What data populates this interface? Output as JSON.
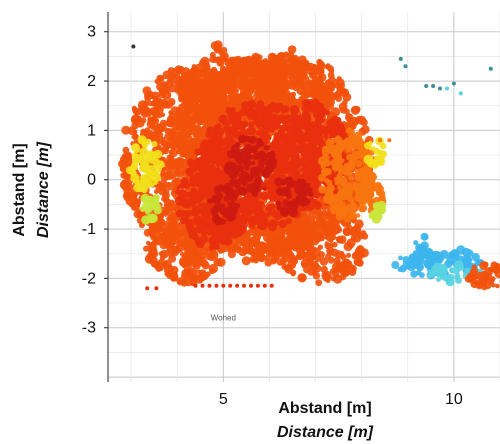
{
  "chart_data": {
    "type": "scatter",
    "title": "",
    "xlabel": "Abstand [m]",
    "xlabel_en": "Distance [m]",
    "ylabel": "Abstand [m]",
    "ylabel_en": "Distance [m]",
    "xlim": [
      2.5,
      11
    ],
    "ylim": [
      -4.1,
      3.4
    ],
    "x_ticks": [
      5,
      10
    ],
    "y_ticks": [
      3,
      2,
      1,
      0,
      -1,
      -2,
      -3
    ],
    "grid": true,
    "legend": "none",
    "annotation": {
      "text": "Wohed",
      "x": 5.0,
      "y": -2.85
    },
    "colors": {
      "dark_red": "#cc1a10",
      "red": "#e8300e",
      "orange_red": "#f2510c",
      "orange": "#f7740f",
      "yellow": "#f2e01a",
      "yellow_green": "#c9e63a",
      "light_blue": "#3db5ee",
      "cyan": "#59d2e2",
      "teal": "#3d8f96",
      "dark": "#333333",
      "grid": "#d4d4d4"
    },
    "series": [
      {
        "region": "canopy-outer",
        "color": "orange_red",
        "ellipses": [
          {
            "cx": 4.3,
            "cy": 0.4,
            "rx": 1.5,
            "ry": 1.9
          },
          {
            "cx": 6.0,
            "cy": 0.5,
            "rx": 2.2,
            "ry": 2.0
          },
          {
            "cx": 5.2,
            "cy": 1.8,
            "rx": 1.2,
            "ry": 0.7
          },
          {
            "cx": 6.5,
            "cy": 1.9,
            "rx": 1.1,
            "ry": 0.6
          },
          {
            "cx": 4.2,
            "cy": -1.2,
            "rx": 0.9,
            "ry": 0.9
          },
          {
            "cx": 7.1,
            "cy": -1.3,
            "rx": 1.0,
            "ry": 0.8
          },
          {
            "cx": 5.9,
            "cy": -1.1,
            "rx": 1.0,
            "ry": 0.6
          },
          {
            "cx": 4.9,
            "cy": 2.5,
            "rx": 0.2,
            "ry": 0.25
          },
          {
            "cx": 6.5,
            "cy": 2.4,
            "rx": 0.3,
            "ry": 0.25
          },
          {
            "cx": 5.6,
            "cy": 2.2,
            "rx": 0.5,
            "ry": 0.3
          }
        ]
      },
      {
        "region": "canopy-core",
        "color": "red",
        "ellipses": [
          {
            "cx": 5.8,
            "cy": 0.3,
            "rx": 1.3,
            "ry": 1.3
          },
          {
            "cx": 4.8,
            "cy": -0.3,
            "rx": 0.8,
            "ry": 1.1
          },
          {
            "cx": 6.9,
            "cy": 0.5,
            "rx": 0.8,
            "ry": 1.1
          }
        ]
      },
      {
        "region": "canopy-dark",
        "color": "dark_red",
        "ellipses": [
          {
            "cx": 5.6,
            "cy": 0.3,
            "rx": 0.5,
            "ry": 0.6
          },
          {
            "cx": 6.5,
            "cy": -0.3,
            "rx": 0.4,
            "ry": 0.4
          },
          {
            "cx": 5.0,
            "cy": -0.5,
            "rx": 0.3,
            "ry": 0.4
          }
        ]
      },
      {
        "region": "canopy-right-edge",
        "color": "orange",
        "ellipses": [
          {
            "cx": 7.7,
            "cy": 0.1,
            "rx": 0.6,
            "ry": 0.9
          },
          {
            "cx": 8.2,
            "cy": -0.4,
            "rx": 0.25,
            "ry": 0.5
          }
        ]
      },
      {
        "region": "canopy-yellow",
        "color": "yellow",
        "ellipses": [
          {
            "cx": 3.3,
            "cy": 0.3,
            "rx": 0.35,
            "ry": 0.55
          },
          {
            "cx": 8.3,
            "cy": 0.55,
            "rx": 0.2,
            "ry": 0.3
          }
        ]
      },
      {
        "region": "canopy-yellow-green",
        "color": "yellow_green",
        "ellipses": [
          {
            "cx": 3.4,
            "cy": -0.55,
            "rx": 0.2,
            "ry": 0.3
          },
          {
            "cx": 8.35,
            "cy": -0.7,
            "rx": 0.15,
            "ry": 0.25
          }
        ]
      },
      {
        "region": "right-low-blue",
        "color": "light_blue",
        "ellipses": [
          {
            "cx": 9.6,
            "cy": -1.7,
            "rx": 0.9,
            "ry": 0.25
          },
          {
            "cx": 9.3,
            "cy": -1.3,
            "rx": 0.15,
            "ry": 0.2
          },
          {
            "cx": 10.3,
            "cy": -1.6,
            "rx": 0.35,
            "ry": 0.2
          }
        ]
      },
      {
        "region": "right-low-cyan",
        "color": "cyan",
        "ellipses": [
          {
            "cx": 10.0,
            "cy": -1.9,
            "rx": 0.6,
            "ry": 0.18
          }
        ]
      },
      {
        "region": "right-low-red",
        "color": "orange_red",
        "ellipses": [
          {
            "cx": 10.7,
            "cy": -1.95,
            "rx": 0.45,
            "ry": 0.25
          }
        ]
      },
      {
        "region": "ground-band",
        "color": "red",
        "points": [
          [
            4.4,
            -2.15
          ],
          [
            4.55,
            -2.15
          ],
          [
            4.7,
            -2.15
          ],
          [
            4.85,
            -2.15
          ],
          [
            5.0,
            -2.15
          ],
          [
            5.15,
            -2.15
          ],
          [
            5.3,
            -2.15
          ],
          [
            5.45,
            -2.15
          ],
          [
            5.6,
            -2.15
          ],
          [
            5.75,
            -2.15
          ],
          [
            5.9,
            -2.15
          ],
          [
            6.05,
            -2.15
          ],
          [
            3.35,
            -2.2
          ],
          [
            3.55,
            -2.2
          ]
        ]
      },
      {
        "region": "isolated-dark",
        "color": "dark",
        "points": [
          [
            3.05,
            2.7
          ]
        ]
      },
      {
        "region": "isolated-teal",
        "color": "teal",
        "points": [
          [
            8.85,
            2.45
          ],
          [
            8.95,
            2.3
          ],
          [
            9.4,
            1.9
          ],
          [
            9.55,
            1.9
          ],
          [
            9.7,
            1.85
          ],
          [
            10.0,
            1.95
          ],
          [
            10.8,
            2.25
          ]
        ]
      },
      {
        "region": "isolated-cyan",
        "color": "cyan",
        "points": [
          [
            10.15,
            1.75
          ],
          [
            9.85,
            1.85
          ]
        ]
      },
      {
        "region": "isolated-orange",
        "color": "orange",
        "points": [
          [
            8.4,
            0.8
          ],
          [
            8.6,
            0.8
          ]
        ]
      }
    ]
  }
}
